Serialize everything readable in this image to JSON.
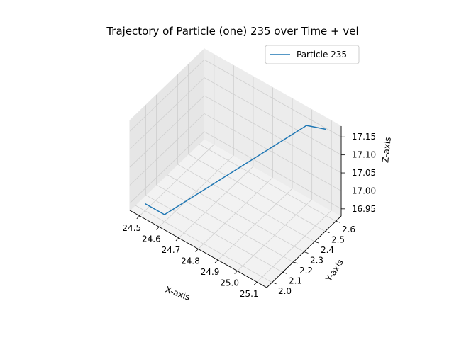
{
  "chart_data": {
    "type": "line",
    "projection": "3d",
    "title": "Trajectory of Particle (one) 235 over Time + vel",
    "xlabel": "X-axis",
    "ylabel": "Y-axis",
    "zlabel": "Z-axis",
    "x_ticks": [
      "24.5",
      "24.6",
      "24.7",
      "24.8",
      "24.9",
      "25.0",
      "25.1"
    ],
    "y_ticks": [
      "2.0",
      "2.1",
      "2.2",
      "2.3",
      "2.4",
      "2.5",
      "2.6"
    ],
    "z_ticks": [
      "16.95",
      "17.00",
      "17.05",
      "17.10",
      "17.15"
    ],
    "xlim": [
      24.45,
      25.15
    ],
    "ylim": [
      1.95,
      2.65
    ],
    "zlim": [
      16.93,
      17.18
    ],
    "grid": true,
    "legend_position": "top-right",
    "series": [
      {
        "name": "Particle 235",
        "color": "#1f77b4",
        "x": [
          24.5,
          24.6,
          25.0,
          25.1
        ],
        "y": [
          2.0,
          2.0,
          2.6,
          2.6
        ],
        "z": [
          16.95,
          16.95,
          17.15,
          17.17
        ]
      }
    ]
  }
}
